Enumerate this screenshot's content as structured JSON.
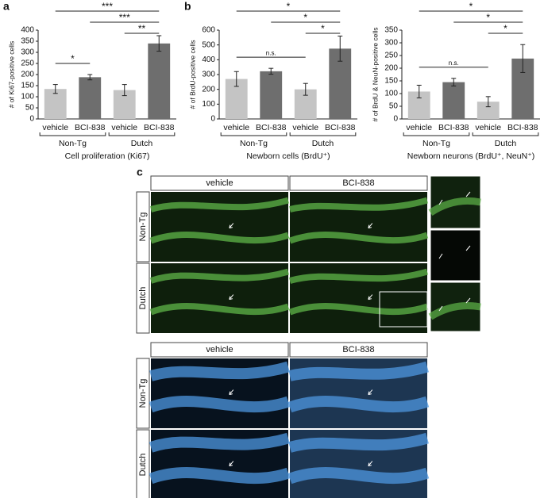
{
  "chart_data": [
    {
      "type": "bar",
      "panel_label": "a",
      "y_label": "# of Ki67-positive cells",
      "caption": "Cell proliferation (Ki67)",
      "categories": [
        "vehicle",
        "BCI-838",
        "vehicle",
        "BCI-838"
      ],
      "values": [
        135,
        188,
        130,
        340
      ],
      "errors": [
        20,
        12,
        25,
        35
      ],
      "colors": [
        "#c4c4c4",
        "#6e6e6e",
        "#c4c4c4",
        "#6e6e6e"
      ],
      "groups": [
        {
          "label": "Non-Tg",
          "categories": [
            0,
            1
          ]
        },
        {
          "label": "Dutch",
          "categories": [
            2,
            3
          ]
        }
      ],
      "annotations": [
        {
          "text": "***",
          "between": [
            0,
            3
          ]
        },
        {
          "text": "***",
          "between": [
            1,
            3
          ]
        },
        {
          "text": "**",
          "between": [
            2,
            3
          ]
        },
        {
          "text": "*",
          "between": [
            0,
            1
          ]
        }
      ],
      "ylim": [
        0,
        400
      ],
      "yticks": [
        0,
        50,
        100,
        150,
        200,
        250,
        300,
        350,
        400
      ]
    },
    {
      "type": "bar",
      "panel_label": "b",
      "y_label": "# of BrdU-positive cells",
      "caption": "Newborn cells (BrdU⁺)",
      "categories": [
        "vehicle",
        "BCI-838",
        "vehicle",
        "BCI-838"
      ],
      "values": [
        270,
        322,
        200,
        475
      ],
      "errors": [
        50,
        20,
        40,
        85
      ],
      "colors": [
        "#c4c4c4",
        "#6e6e6e",
        "#c4c4c4",
        "#6e6e6e"
      ],
      "groups": [
        {
          "label": "Non-Tg",
          "categories": [
            0,
            1
          ]
        },
        {
          "label": "Dutch",
          "categories": [
            2,
            3
          ]
        }
      ],
      "annotations": [
        {
          "text": "*",
          "between": [
            0,
            3
          ]
        },
        {
          "text": "*",
          "between": [
            1,
            3
          ]
        },
        {
          "text": "*",
          "between": [
            2,
            3
          ]
        },
        {
          "text": "n.s.",
          "between": [
            0,
            2
          ]
        }
      ],
      "ylim": [
        0,
        600
      ],
      "yticks": [
        0,
        100,
        200,
        300,
        400,
        500,
        600
      ]
    },
    {
      "type": "bar",
      "y_label": "# of BrdU & NeuN-positive cells",
      "caption": "Newborn neurons (BrdU⁺, NeuN⁺)",
      "categories": [
        "vehicle",
        "BCI-838",
        "vehicle",
        "BCI-838"
      ],
      "values": [
        108,
        145,
        68,
        238
      ],
      "errors": [
        25,
        15,
        20,
        55
      ],
      "colors": [
        "#c4c4c4",
        "#6e6e6e",
        "#c4c4c4",
        "#6e6e6e"
      ],
      "groups": [
        {
          "label": "Non-Tg",
          "categories": [
            0,
            1
          ]
        },
        {
          "label": "Dutch",
          "categories": [
            2,
            3
          ]
        }
      ],
      "annotations": [
        {
          "text": "*",
          "between": [
            0,
            3
          ]
        },
        {
          "text": "*",
          "between": [
            1,
            3
          ]
        },
        {
          "text": "*",
          "between": [
            2,
            3
          ]
        },
        {
          "text": "n.s.",
          "between": [
            0,
            2
          ]
        }
      ],
      "ylim": [
        0,
        350
      ],
      "yticks": [
        0,
        50,
        100,
        150,
        200,
        250,
        300,
        350
      ]
    }
  ],
  "panel_c": {
    "label": "c",
    "top": {
      "columns": [
        "vehicle",
        "BCI-838"
      ],
      "rows": [
        "Non-Tg",
        "Dutch"
      ]
    },
    "bottom": {
      "columns": [
        "vehicle",
        "BCI-838"
      ],
      "rows": [
        "Non-Tg",
        "Dutch"
      ]
    }
  }
}
